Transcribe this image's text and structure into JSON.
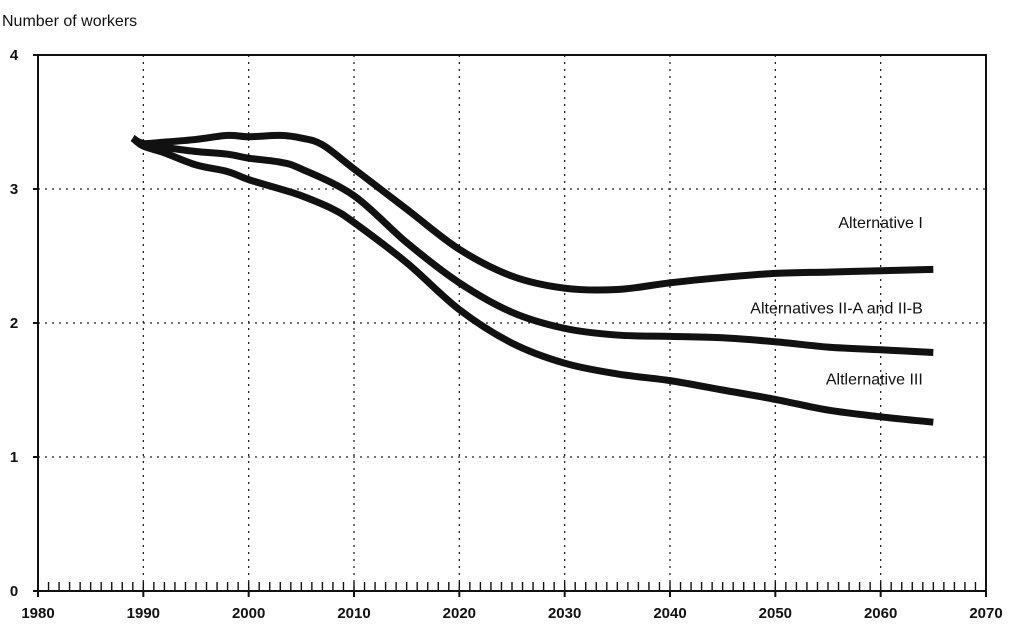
{
  "chart_data": {
    "type": "line",
    "title": "",
    "ylabel": "Number of workers",
    "xlabel": "",
    "xlim": [
      1980,
      2070
    ],
    "ylim": [
      0,
      4
    ],
    "x_ticks": [
      "1980",
      "1990",
      "2000",
      "2010",
      "2020",
      "2030",
      "2040",
      "2050",
      "2060",
      "2070"
    ],
    "y_ticks": [
      "0",
      "1",
      "2",
      "3",
      "4"
    ],
    "grid": true,
    "legend": "none (series labeled directly on chart)",
    "series": [
      {
        "name": "Alternative I",
        "x": [
          1989,
          1990,
          1992,
          1995,
          1998,
          2000,
          2003,
          2005,
          2007,
          2010,
          2015,
          2020,
          2025,
          2030,
          2035,
          2040,
          2045,
          2050,
          2055,
          2060,
          2065
        ],
        "y": [
          3.38,
          3.34,
          3.35,
          3.37,
          3.4,
          3.39,
          3.4,
          3.38,
          3.33,
          3.15,
          2.85,
          2.55,
          2.35,
          2.26,
          2.25,
          2.3,
          2.34,
          2.37,
          2.38,
          2.39,
          2.4
        ]
      },
      {
        "name": "Alternatives II-A and II-B",
        "x": [
          1989,
          1990,
          1992,
          1995,
          1998,
          2000,
          2003,
          2005,
          2010,
          2015,
          2020,
          2025,
          2030,
          2035,
          2040,
          2045,
          2050,
          2055,
          2060,
          2065
        ],
        "y": [
          3.38,
          3.33,
          3.31,
          3.28,
          3.26,
          3.23,
          3.2,
          3.15,
          2.95,
          2.6,
          2.3,
          2.08,
          1.96,
          1.91,
          1.9,
          1.89,
          1.86,
          1.82,
          1.8,
          1.78
        ]
      },
      {
        "name": "Altlernative III",
        "x": [
          1989,
          1990,
          1992,
          1995,
          1998,
          2000,
          2003,
          2005,
          2008,
          2010,
          2015,
          2020,
          2025,
          2030,
          2035,
          2040,
          2045,
          2050,
          2055,
          2060,
          2065
        ],
        "y": [
          3.38,
          3.32,
          3.27,
          3.18,
          3.13,
          3.07,
          3.0,
          2.95,
          2.85,
          2.75,
          2.45,
          2.1,
          1.85,
          1.7,
          1.62,
          1.57,
          1.5,
          1.43,
          1.35,
          1.3,
          1.26
        ]
      }
    ]
  }
}
